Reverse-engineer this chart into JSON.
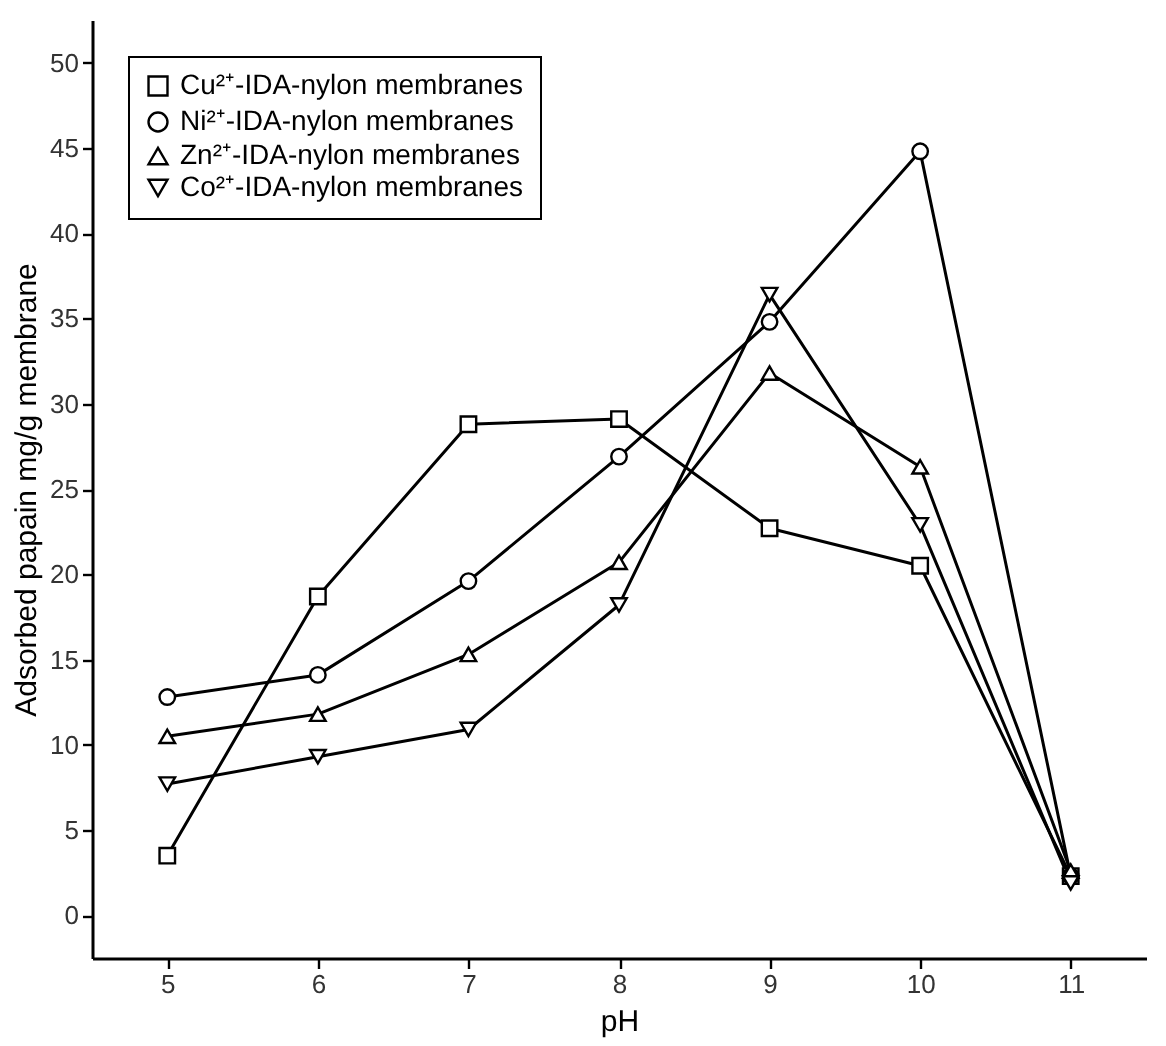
{
  "chart_data": {
    "type": "line",
    "xlabel": "pH",
    "ylabel": "Adsorbed papain mg/g membrane",
    "x": [
      5,
      6,
      7,
      8,
      9,
      10,
      11
    ],
    "xlim": [
      4.5,
      11.5
    ],
    "xticks": [
      5,
      6,
      7,
      8,
      9,
      10,
      11
    ],
    "ylim": [
      -2.5,
      52.5
    ],
    "yticks": [
      0,
      5,
      10,
      15,
      20,
      25,
      30,
      35,
      40,
      45,
      50
    ],
    "grid": false,
    "legend": "top left",
    "line_style": "solid",
    "series": [
      {
        "name": "Cu²⁺-IDA-nylon membranes",
        "color": "#000000",
        "marker": "square",
        "values": [
          3.5,
          18.7,
          28.8,
          29.1,
          22.7,
          20.5,
          2.3
        ]
      },
      {
        "name": "Ni²⁺-IDA-nylon membranes",
        "color": "#000000",
        "marker": "circle",
        "values": [
          12.8,
          14.1,
          19.6,
          26.9,
          34.8,
          44.8,
          2.3
        ]
      },
      {
        "name": "Zn²⁺-IDA-nylon membranes",
        "color": "#000000",
        "marker": "triangle",
        "values": [
          10.5,
          11.8,
          15.3,
          20.7,
          31.8,
          26.3,
          2.6
        ]
      },
      {
        "name": "Co²⁺-IDA-nylon membranes",
        "color": "#000000",
        "marker": "triangle-down",
        "values": [
          7.7,
          9.3,
          10.9,
          18.2,
          36.4,
          22.9,
          1.9
        ]
      }
    ]
  }
}
